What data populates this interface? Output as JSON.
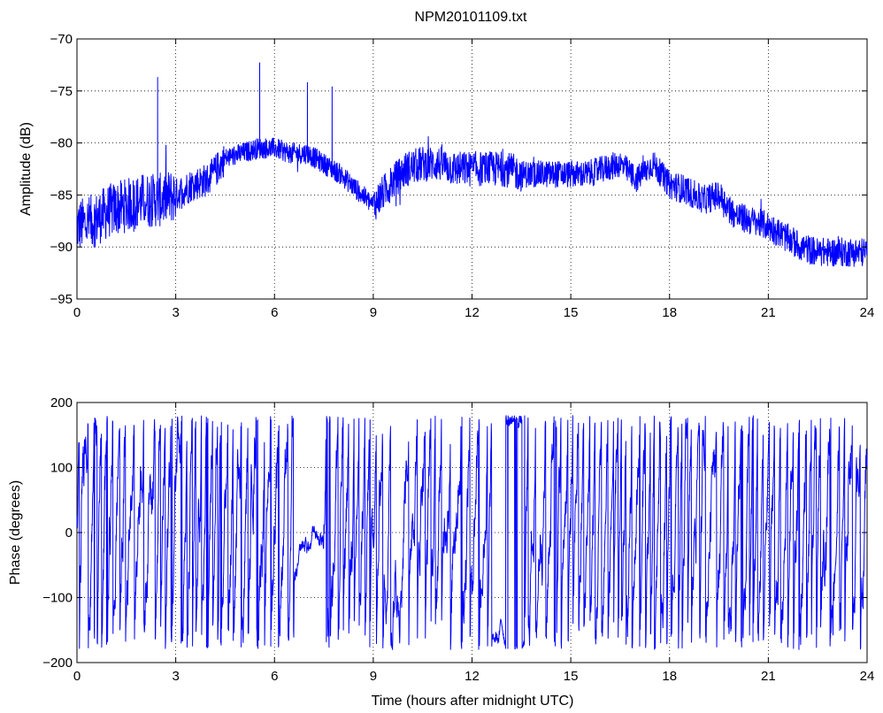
{
  "chart_data": [
    {
      "type": "line",
      "title": "NPM20101109.txt",
      "xlabel": "",
      "ylabel": "Amplitude (dB)",
      "xlim": [
        0,
        24
      ],
      "ylim": [
        -95,
        -70
      ],
      "xticks": [
        0,
        3,
        6,
        9,
        12,
        15,
        18,
        21,
        24
      ],
      "yticks": [
        -95,
        -90,
        -85,
        -80,
        -75,
        -70
      ],
      "grid": true,
      "series": [
        {
          "color": "#0000ff",
          "x": [
            0,
            0.5,
            1,
            1.5,
            2,
            2.5,
            3,
            3.5,
            4,
            4.5,
            5,
            5.5,
            6,
            6.5,
            7,
            7.5,
            8,
            8.5,
            9,
            9.5,
            10,
            10.5,
            11,
            11.5,
            12,
            12.5,
            13,
            13.5,
            14,
            14.5,
            15,
            15.5,
            16,
            16.5,
            17,
            17.5,
            18,
            18.5,
            19,
            19.5,
            20,
            20.5,
            21,
            21.5,
            22,
            22.5,
            23,
            23.5,
            24
          ],
          "values": [
            -88,
            -87.5,
            -86.5,
            -86,
            -85.5,
            -85.5,
            -85,
            -84,
            -83.5,
            -81.5,
            -81,
            -80.5,
            -80.5,
            -81,
            -81,
            -82,
            -83,
            -84.5,
            -86,
            -84,
            -82.5,
            -82,
            -82,
            -82.5,
            -82.5,
            -82.5,
            -82.5,
            -83,
            -83,
            -83,
            -83,
            -83,
            -82.5,
            -82,
            -83.5,
            -82,
            -84,
            -84.5,
            -85.5,
            -85,
            -87,
            -87.5,
            -88,
            -89,
            -90,
            -90.5,
            -90.5,
            -90.5,
            -90.5
          ],
          "spikes": [
            {
              "x": 2.45,
              "y": -73.7
            },
            {
              "x": 5.55,
              "y": -72.3
            },
            {
              "x": 7.0,
              "y": -74.2
            },
            {
              "x": 7.75,
              "y": -74.6
            }
          ]
        }
      ]
    },
    {
      "type": "line",
      "title": "",
      "xlabel": "Time (hours after midnight UTC)",
      "ylabel": "Phase (degrees)",
      "xlim": [
        0,
        24
      ],
      "ylim": [
        -200,
        200
      ],
      "xticks": [
        0,
        3,
        6,
        9,
        12,
        15,
        18,
        21,
        24
      ],
      "yticks": [
        -200,
        -100,
        0,
        100,
        200
      ],
      "grid": true,
      "series": [
        {
          "color": "#0000ff",
          "phase_range": [
            -180,
            180
          ]
        }
      ]
    }
  ]
}
